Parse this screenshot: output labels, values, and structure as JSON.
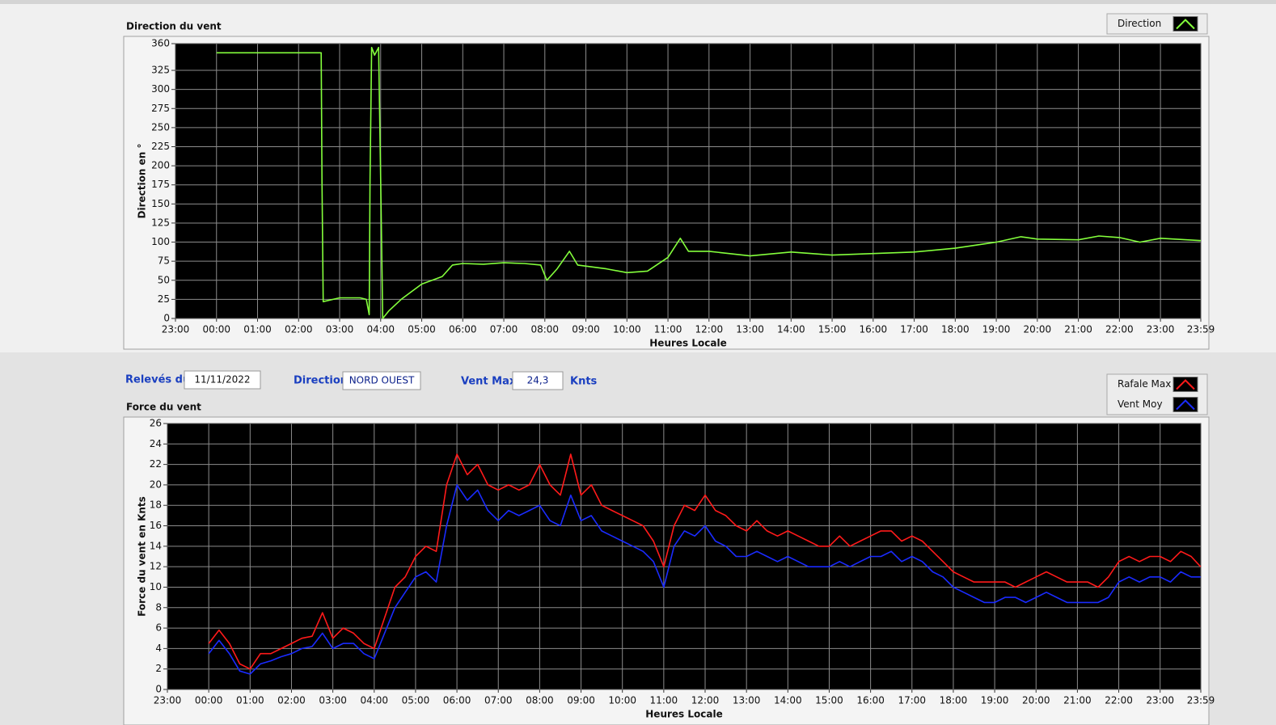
{
  "chart_data": [
    {
      "type": "line",
      "title": "Direction du vent",
      "y_label": "Direction en °",
      "x_label": "Heures Locale",
      "xlim": [
        -1,
        23.983
      ],
      "ylim": [
        0,
        360
      ],
      "xticks": [
        {
          "value": -1,
          "label": "23:00"
        },
        {
          "value": 0,
          "label": "00:00"
        },
        {
          "value": 1,
          "label": "01:00"
        },
        {
          "value": 2,
          "label": "02:00"
        },
        {
          "value": 3,
          "label": "03:00"
        },
        {
          "value": 4,
          "label": "04:00"
        },
        {
          "value": 5,
          "label": "05:00"
        },
        {
          "value": 6,
          "label": "06:00"
        },
        {
          "value": 7,
          "label": "07:00"
        },
        {
          "value": 8,
          "label": "08:00"
        },
        {
          "value": 9,
          "label": "09:00"
        },
        {
          "value": 10,
          "label": "10:00"
        },
        {
          "value": 11,
          "label": "11:00"
        },
        {
          "value": 12,
          "label": "12:00"
        },
        {
          "value": 13,
          "label": "13:00"
        },
        {
          "value": 14,
          "label": "14:00"
        },
        {
          "value": 15,
          "label": "15:00"
        },
        {
          "value": 16,
          "label": "16:00"
        },
        {
          "value": 17,
          "label": "17:00"
        },
        {
          "value": 18,
          "label": "18:00"
        },
        {
          "value": 19,
          "label": "19:00"
        },
        {
          "value": 20,
          "label": "20:00"
        },
        {
          "value": 21,
          "label": "21:00"
        },
        {
          "value": 22,
          "label": "22:00"
        },
        {
          "value": 23,
          "label": "23:00"
        },
        {
          "value": 23.983,
          "label": "23:59"
        }
      ],
      "yticks": [
        0,
        25,
        50,
        75,
        100,
        125,
        150,
        175,
        200,
        225,
        250,
        275,
        300,
        325,
        360
      ],
      "grid": true,
      "legend": "top-right",
      "x": [
        0,
        2.55,
        2.57,
        2.6,
        3.0,
        3.5,
        3.65,
        3.72,
        3.74,
        3.78,
        3.85,
        3.95,
        4.0,
        4.05,
        4.2,
        4.5,
        5.0,
        5.5,
        5.75,
        6.0,
        6.5,
        7.0,
        7.5,
        7.9,
        8.05,
        8.3,
        8.6,
        8.8,
        9.5,
        10,
        10.5,
        11,
        11.3,
        11.5,
        12,
        13,
        14,
        15,
        16,
        17,
        18,
        19,
        19.6,
        20,
        21,
        21.5,
        22,
        22.5,
        23,
        23.983
      ],
      "series": [
        {
          "name": "Direction",
          "color": "#84ff3c",
          "values": [
            348,
            348,
            180,
            22,
            27,
            27,
            25,
            5,
            180,
            355,
            345,
            355,
            180,
            0,
            10,
            25,
            45,
            55,
            70,
            72,
            71,
            73,
            72,
            70,
            50,
            65,
            88,
            70,
            65,
            60,
            62,
            80,
            105,
            88,
            88,
            82,
            87,
            83,
            85,
            87,
            92,
            100,
            107,
            104,
            103,
            108,
            106,
            100,
            105,
            102
          ]
        }
      ]
    },
    {
      "type": "line",
      "title": "Force du vent",
      "y_label": "Force du vent en Knts",
      "x_label": "Heures Locale",
      "xlim": [
        -1,
        23.983
      ],
      "ylim": [
        0,
        26
      ],
      "xticks": [
        {
          "value": -1,
          "label": "23:00"
        },
        {
          "value": 0,
          "label": "00:00"
        },
        {
          "value": 1,
          "label": "01:00"
        },
        {
          "value": 2,
          "label": "02:00"
        },
        {
          "value": 3,
          "label": "03:00"
        },
        {
          "value": 4,
          "label": "04:00"
        },
        {
          "value": 5,
          "label": "05:00"
        },
        {
          "value": 6,
          "label": "06:00"
        },
        {
          "value": 7,
          "label": "07:00"
        },
        {
          "value": 8,
          "label": "08:00"
        },
        {
          "value": 9,
          "label": "09:00"
        },
        {
          "value": 10,
          "label": "10:00"
        },
        {
          "value": 11,
          "label": "11:00"
        },
        {
          "value": 12,
          "label": "12:00"
        },
        {
          "value": 13,
          "label": "13:00"
        },
        {
          "value": 14,
          "label": "14:00"
        },
        {
          "value": 15,
          "label": "15:00"
        },
        {
          "value": 16,
          "label": "16:00"
        },
        {
          "value": 17,
          "label": "17:00"
        },
        {
          "value": 18,
          "label": "18:00"
        },
        {
          "value": 19,
          "label": "19:00"
        },
        {
          "value": 20,
          "label": "20:00"
        },
        {
          "value": 21,
          "label": "21:00"
        },
        {
          "value": 22,
          "label": "22:00"
        },
        {
          "value": 23,
          "label": "23:00"
        },
        {
          "value": 23.983,
          "label": "23:59"
        }
      ],
      "yticks": [
        0,
        2,
        4,
        6,
        8,
        10,
        12,
        14,
        16,
        18,
        20,
        22,
        24,
        26
      ],
      "grid": true,
      "legend": "top-right",
      "x": [
        0,
        0.25,
        0.5,
        0.75,
        1,
        1.25,
        1.5,
        1.75,
        2,
        2.25,
        2.5,
        2.75,
        3,
        3.25,
        3.5,
        3.75,
        4,
        4.25,
        4.5,
        4.75,
        5,
        5.25,
        5.5,
        5.75,
        6,
        6.25,
        6.5,
        6.75,
        7,
        7.25,
        7.5,
        7.75,
        8,
        8.25,
        8.5,
        8.75,
        9,
        9.25,
        9.5,
        9.75,
        10,
        10.25,
        10.5,
        10.75,
        11,
        11.25,
        11.5,
        11.75,
        12,
        12.25,
        12.5,
        12.75,
        13,
        13.25,
        13.5,
        13.75,
        14,
        14.25,
        14.5,
        14.75,
        15,
        15.25,
        15.5,
        15.75,
        16,
        16.25,
        16.5,
        16.75,
        17,
        17.25,
        17.5,
        17.75,
        18,
        18.25,
        18.5,
        18.75,
        19,
        19.25,
        19.5,
        19.75,
        20,
        20.25,
        20.5,
        20.75,
        21,
        21.25,
        21.5,
        21.75,
        22,
        22.25,
        22.5,
        22.75,
        23,
        23.25,
        23.5,
        23.75,
        23.98
      ],
      "series": [
        {
          "name": "Rafale Max",
          "color": "#ff1a1a",
          "values": [
            4.5,
            5.8,
            4.5,
            2.5,
            2.0,
            3.5,
            3.5,
            4,
            4.5,
            5,
            5.2,
            7.5,
            5,
            6,
            5.5,
            4.5,
            4.0,
            7,
            10,
            11,
            13,
            14,
            13.5,
            20,
            23,
            21,
            22,
            20,
            19.5,
            20,
            19.5,
            20,
            22,
            20,
            19,
            23,
            19,
            20,
            18,
            17.5,
            17,
            16.5,
            16,
            14.5,
            12,
            16,
            18,
            17.5,
            19,
            17.5,
            17,
            16,
            15.5,
            16.5,
            15.5,
            15,
            15.5,
            15,
            14.5,
            14,
            14,
            15,
            14,
            14.5,
            15,
            15.5,
            15.5,
            14.5,
            15,
            14.5,
            13.5,
            12.5,
            11.5,
            11,
            10.5,
            10.5,
            10.5,
            10.5,
            10,
            10.5,
            11,
            11.5,
            11,
            10.5,
            10.5,
            10.5,
            10,
            11,
            12.5,
            13,
            12.5,
            13,
            13,
            12.5,
            13.5,
            13,
            12
          ]
        },
        {
          "name": "Vent Moy",
          "color": "#1a2bff",
          "values": [
            3.5,
            4.8,
            3.5,
            1.8,
            1.5,
            2.5,
            2.8,
            3.2,
            3.5,
            4,
            4.2,
            5.5,
            4,
            4.5,
            4.5,
            3.5,
            3,
            5.5,
            8,
            9.5,
            11,
            11.5,
            10.5,
            16,
            20,
            18.5,
            19.5,
            17.5,
            16.5,
            17.5,
            17,
            17.5,
            18,
            16.5,
            16,
            19,
            16.5,
            17,
            15.5,
            15,
            14.5,
            14,
            13.5,
            12.5,
            10,
            14,
            15.5,
            15,
            16,
            14.5,
            14,
            13,
            13,
            13.5,
            13,
            12.5,
            13,
            12.5,
            12,
            12,
            12,
            12.5,
            12,
            12.5,
            13,
            13,
            13.5,
            12.5,
            13,
            12.5,
            11.5,
            11,
            10,
            9.5,
            9,
            8.5,
            8.5,
            9,
            9,
            8.5,
            9,
            9.5,
            9,
            8.5,
            8.5,
            8.5,
            8.5,
            9,
            10.5,
            11,
            10.5,
            11,
            11,
            10.5,
            11.5,
            11,
            11
          ]
        }
      ]
    }
  ],
  "form": {
    "date_label": "Relevés du",
    "date": "11/11/2022",
    "direction_label": "Direction",
    "direction": "NORD OUEST",
    "max_label": "Vent Max",
    "max": "24,3",
    "max_unit": "Knts"
  }
}
